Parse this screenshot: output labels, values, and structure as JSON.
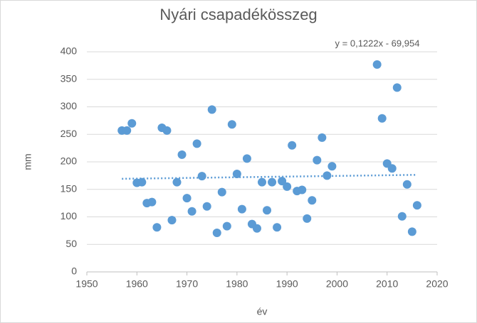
{
  "chart_data": {
    "type": "scatter",
    "title": "Nyári csapadékösszeg",
    "x_label": "év",
    "y_label": "mm",
    "series": [
      {
        "name": "Nyári csapadékösszeg",
        "color": "#5b9bd5",
        "x": [
          1957,
          1958,
          1959,
          1960,
          1961,
          1962,
          1963,
          1964,
          1965,
          1966,
          1967,
          1968,
          1969,
          1970,
          1971,
          1972,
          1973,
          1974,
          1975,
          1976,
          1977,
          1978,
          1979,
          1980,
          1981,
          1982,
          1983,
          1984,
          1985,
          1986,
          1987,
          1988,
          1989,
          1990,
          1991,
          1992,
          1993,
          1994,
          1995,
          1996,
          1997,
          1998,
          1999,
          2008,
          2009,
          2010,
          2011,
          2012,
          2013,
          2014,
          2015,
          2016
        ],
        "values": [
          257,
          257,
          270,
          162,
          163,
          125,
          127,
          81,
          262,
          257,
          94,
          163,
          213,
          134,
          110,
          233,
          174,
          119,
          295,
          71,
          145,
          83,
          268,
          178,
          114,
          206,
          87,
          79,
          163,
          112,
          163,
          81,
          165,
          155,
          230,
          147,
          149,
          97,
          130,
          203,
          244,
          175,
          192,
          377,
          279,
          197,
          188,
          335,
          101,
          159,
          73,
          121
        ]
      }
    ],
    "trendline": {
      "label": "y = 0,1222x - 69,954",
      "slope": 0.1222,
      "intercept": -69.954,
      "x": [
        1957,
        2016
      ],
      "color": "#5b9bd5"
    },
    "xlim": [
      1950,
      2020
    ],
    "xticks": [
      1950,
      1960,
      1970,
      1980,
      1990,
      2000,
      2010,
      2020
    ],
    "ylim": [
      0,
      400
    ],
    "yticks": [
      0,
      50,
      100,
      150,
      200,
      250,
      300,
      350,
      400
    ],
    "grid": true
  }
}
